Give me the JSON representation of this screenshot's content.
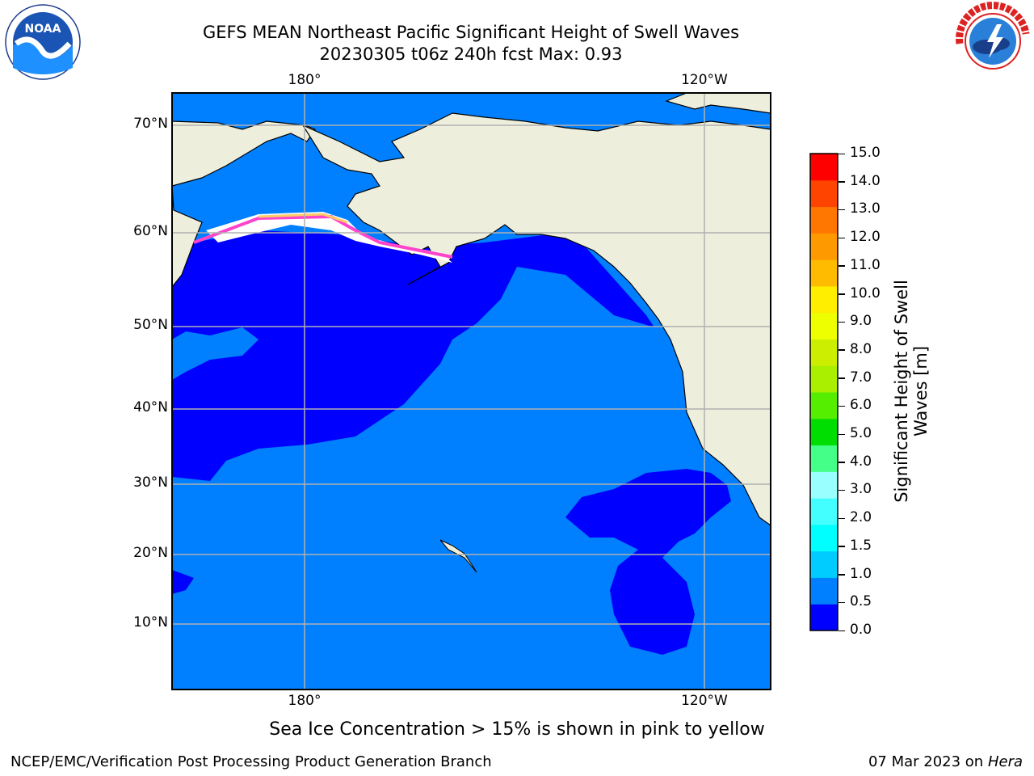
{
  "title_line1": "GEFS MEAN Northeast Pacific Significant Height of Swell Waves",
  "title_line2": "20230305 t06z 240h fcst   Max: 0.93",
  "logos": {
    "left": "NOAA",
    "right": "National Weather Service"
  },
  "map": {
    "lat_labels": [
      "70°N",
      "60°N",
      "50°N",
      "40°N",
      "30°N",
      "20°N",
      "10°N"
    ],
    "lon_labels_top": [
      "180°",
      "120°W"
    ],
    "lon_labels_bottom": [
      "180°",
      "120°W"
    ]
  },
  "colorbar": {
    "label_line1": "Significant Height of Swell",
    "label_line2": "Waves [m]",
    "ticks": [
      "15.0",
      "14.0",
      "13.0",
      "12.0",
      "11.0",
      "10.0",
      "9.0",
      "8.0",
      "7.0",
      "6.0",
      "5.0",
      "4.0",
      "3.0",
      "2.0",
      "1.5",
      "1.0",
      "0.5",
      "0.0"
    ],
    "colors_bottom_to_top": [
      "#0000ff",
      "#0080ff",
      "#00ccff",
      "#00ffff",
      "#44ffff",
      "#99ffff",
      "#44ff88",
      "#00dd00",
      "#55ee00",
      "#aaee00",
      "#ccee00",
      "#eeff00",
      "#ffee00",
      "#ffbb00",
      "#ff9900",
      "#ff7700",
      "#ff4400",
      "#ff0000"
    ]
  },
  "colors": {
    "land": "#eeeedd",
    "ocean_low": "#0000ff",
    "ocean_mid": "#0080ff",
    "ice": "#ffffff",
    "gridline": "#b0b0b0"
  },
  "footer_note": "Sea Ice Concentration > 15% is shown in pink to yellow",
  "credit_left": "NCEP/EMC/Verification Post Processing Product Generation Branch",
  "credit_right_date": "07 Mar 2023 on",
  "credit_right_host": "Hera"
}
